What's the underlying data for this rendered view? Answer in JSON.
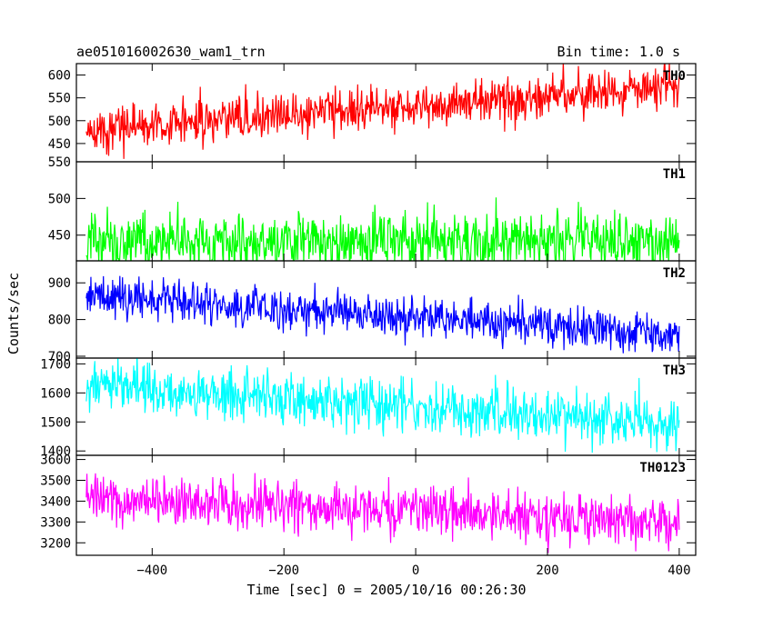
{
  "header": {
    "left_title": "ae051016002630_wam1_trn",
    "right_title": "Bin time: 1.0 s"
  },
  "axes": {
    "xlabel": "Time [sec] 0 = 2005/10/16 00:26:30",
    "ylabel": "Counts/sec"
  },
  "chart_data": {
    "type": "line",
    "title": "ae051016002630_wam1_trn",
    "subtitle": "Bin time: 1.0 s",
    "xlabel": "Time [sec] 0 = 2005/10/16 00:26:30",
    "ylabel": "Counts/sec",
    "xlim": [
      -515,
      425
    ],
    "x_ticks": [
      -400,
      -200,
      0,
      200,
      400
    ],
    "x_range_data": [
      -500,
      400
    ],
    "bin_time_s": 1.0,
    "grid": false,
    "panels": [
      {
        "name": "TH0",
        "color": "#ff0000",
        "ylim": [
          410,
          625
        ],
        "y_ticks": [
          450,
          500,
          550,
          600
        ],
        "trend": {
          "start": 480,
          "end": 575
        },
        "noise_sd": 25
      },
      {
        "name": "TH1",
        "color": "#00ff00",
        "ylim": [
          415,
          550
        ],
        "y_ticks": [
          450,
          500,
          550
        ],
        "trend": {
          "start": 441,
          "end": 441
        },
        "noise_sd": 20
      },
      {
        "name": "TH2",
        "color": "#0000ff",
        "ylim": [
          695,
          960
        ],
        "y_ticks": [
          700,
          800,
          900
        ],
        "trend": {
          "start": 865,
          "end": 760
        },
        "noise_sd": 28
      },
      {
        "name": "TH3",
        "color": "#00ffff",
        "ylim": [
          1385,
          1720
        ],
        "y_ticks": [
          1400,
          1500,
          1600,
          1700
        ],
        "trend": {
          "start": 1625,
          "end": 1490
        },
        "noise_sd": 45
      },
      {
        "name": "TH0123",
        "color": "#ff00ff",
        "ylim": [
          3140,
          3620
        ],
        "y_ticks": [
          3200,
          3300,
          3400,
          3500,
          3600
        ],
        "trend": {
          "start": 3410,
          "end": 3300
        },
        "noise_sd": 60
      }
    ]
  }
}
